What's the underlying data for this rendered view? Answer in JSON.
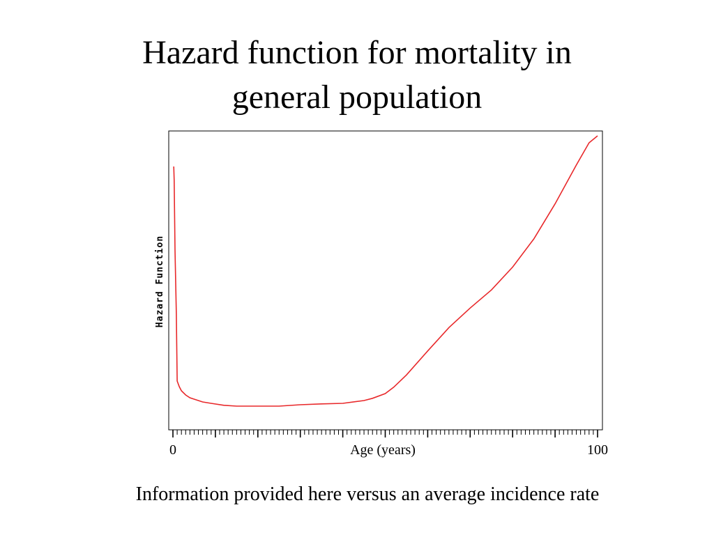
{
  "slide": {
    "title_line1": "Hazard function for mortality in",
    "title_line2": "general population",
    "caption": "Information provided here versus an average incidence rate"
  },
  "chart_data": {
    "type": "line",
    "xlabel": "Age (years)",
    "ylabel": "Hazard Function",
    "xlim": [
      0,
      100
    ],
    "ylim": [
      0,
      100
    ],
    "x_tick_labels": [
      "0",
      "100"
    ],
    "y_tick_labels": [],
    "grid": false,
    "series": [
      {
        "color": "#e8282a",
        "x": [
          0.2,
          0.3,
          0.5,
          0.8,
          1,
          1.5,
          2,
          3,
          4,
          5,
          7,
          9,
          12,
          15,
          20,
          25,
          30,
          35,
          40,
          45,
          47,
          50,
          52,
          55,
          60,
          65,
          70,
          75,
          80,
          85,
          90,
          95,
          98,
          100
        ],
        "values": [
          89,
          84,
          59,
          36,
          12,
          10,
          8.5,
          7,
          6,
          5.5,
          4.5,
          4,
          3.3,
          3,
          3,
          3,
          3.5,
          3.8,
          4,
          5,
          5.8,
          7.5,
          9.8,
          14.2,
          22.8,
          31.2,
          38.2,
          44.7,
          52.9,
          63,
          75.6,
          89.5,
          97.5,
          100
        ]
      }
    ]
  }
}
